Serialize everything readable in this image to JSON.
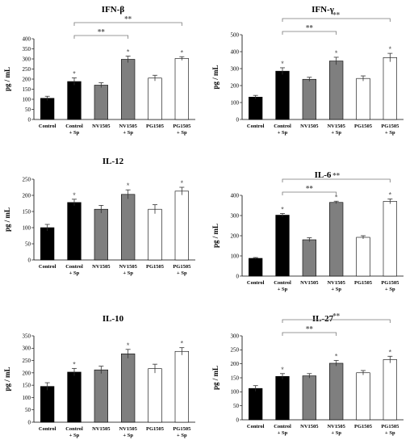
{
  "colors": {
    "black": "#000000",
    "gray": "#7f7f7f",
    "white": "#ffffff",
    "axis": "#000000",
    "err": "#333333",
    "bracket": "#777777"
  },
  "chart_data": [
    {
      "type": "bar",
      "title": "IFN-β",
      "ylabel": "pg / mL",
      "ylim": [
        0,
        400
      ],
      "yticks": [
        0,
        50,
        100,
        150,
        200,
        250,
        300,
        350,
        400
      ],
      "categories": [
        [
          "Control"
        ],
        [
          "Control",
          "+ Sp"
        ],
        [
          "NV1505"
        ],
        [
          "NV1505",
          "+ Sp"
        ],
        [
          "PG1505"
        ],
        [
          "PG1505",
          "+ Sp"
        ]
      ],
      "values": [
        105,
        188,
        170,
        298,
        205,
        302
      ],
      "errors": [
        10,
        18,
        12,
        16,
        14,
        9
      ],
      "bar_colors": [
        "black",
        "black",
        "gray",
        "gray",
        "white",
        "white"
      ],
      "stars": [
        false,
        true,
        false,
        true,
        false,
        true
      ],
      "star_label": "*",
      "brackets": [
        {
          "from": 1,
          "to": 3,
          "label": "**"
        },
        {
          "from": 1,
          "to": 5,
          "label": "**"
        }
      ]
    },
    {
      "type": "bar",
      "title": "IFN-γ",
      "ylabel": "pg / mL",
      "ylim": [
        0,
        500
      ],
      "yticks": [
        0,
        100,
        200,
        300,
        400,
        500
      ],
      "categories": [
        [
          "Control"
        ],
        [
          "Control",
          "+ Sp"
        ],
        [
          "NV1505"
        ],
        [
          "NV1505",
          "+ Sp"
        ],
        [
          "PG1505"
        ],
        [
          "PG1505",
          "+ Sp"
        ]
      ],
      "values": [
        132,
        285,
        237,
        345,
        242,
        365
      ],
      "errors": [
        10,
        20,
        12,
        22,
        15,
        25
      ],
      "bar_colors": [
        "black",
        "black",
        "gray",
        "gray",
        "white",
        "white"
      ],
      "stars": [
        false,
        true,
        false,
        true,
        false,
        true
      ],
      "star_label": "*",
      "brackets": [
        {
          "from": 1,
          "to": 3,
          "label": "**"
        },
        {
          "from": 1,
          "to": 5,
          "label": "**"
        }
      ]
    },
    {
      "type": "bar",
      "title": "IL-12",
      "ylabel": "pg / mL",
      "ylim": [
        0,
        250
      ],
      "yticks": [
        0,
        50,
        100,
        150,
        200,
        250
      ],
      "categories": [
        [
          "Control"
        ],
        [
          "Control",
          "+ Sp"
        ],
        [
          "NV1505"
        ],
        [
          "NV1505",
          "+ Sp"
        ],
        [
          "PG1505"
        ],
        [
          "PG1505",
          "+ Sp"
        ]
      ],
      "values": [
        100,
        178,
        157,
        203,
        157,
        213
      ],
      "errors": [
        10,
        10,
        12,
        14,
        14,
        12
      ],
      "bar_colors": [
        "black",
        "black",
        "gray",
        "gray",
        "white",
        "white"
      ],
      "stars": [
        false,
        true,
        false,
        true,
        false,
        true
      ],
      "star_label": "*",
      "brackets": []
    },
    {
      "type": "bar",
      "title": "IL-6",
      "ylabel": "pg / mL",
      "ylim": [
        0,
        400
      ],
      "yticks": [
        0,
        100,
        200,
        300,
        400
      ],
      "categories": [
        [
          "Control"
        ],
        [
          "Control",
          "+ Sp"
        ],
        [
          "NV1505"
        ],
        [
          "NV1505",
          "+ Sp"
        ],
        [
          "PG1505"
        ],
        [
          "PG1505",
          "+ Sp"
        ]
      ],
      "values": [
        88,
        302,
        180,
        365,
        192,
        370
      ],
      "errors": [
        4,
        8,
        10,
        6,
        8,
        12
      ],
      "bar_colors": [
        "black",
        "black",
        "gray",
        "gray",
        "white",
        "white"
      ],
      "stars": [
        false,
        true,
        false,
        true,
        false,
        true
      ],
      "star_label": "*",
      "brackets": [
        {
          "from": 1,
          "to": 3,
          "label": "**"
        },
        {
          "from": 1,
          "to": 5,
          "label": "**"
        }
      ]
    },
    {
      "type": "bar",
      "title": "IL-10",
      "ylabel": "pg / mL",
      "ylim": [
        0,
        350
      ],
      "yticks": [
        0,
        50,
        100,
        150,
        200,
        250,
        300,
        350
      ],
      "categories": [
        [
          "Control"
        ],
        [
          "Control",
          "+ Sp"
        ],
        [
          "NV1505"
        ],
        [
          "NV1505",
          "+ Sp"
        ],
        [
          "PG1505"
        ],
        [
          "PG1505",
          "+ Sp"
        ]
      ],
      "values": [
        145,
        203,
        212,
        277,
        217,
        287
      ],
      "errors": [
        15,
        15,
        15,
        18,
        18,
        15
      ],
      "bar_colors": [
        "black",
        "black",
        "gray",
        "gray",
        "white",
        "white"
      ],
      "stars": [
        false,
        true,
        false,
        true,
        false,
        true
      ],
      "star_label": "*",
      "brackets": []
    },
    {
      "type": "bar",
      "title": "IL-27",
      "ylabel": "pg / mL",
      "ylim": [
        0,
        300
      ],
      "yticks": [
        0,
        50,
        100,
        150,
        200,
        250,
        300
      ],
      "categories": [
        [
          "Control"
        ],
        [
          "Control",
          "+ Sp"
        ],
        [
          "NV1505"
        ],
        [
          "NV1505",
          "+ Sp"
        ],
        [
          "PG1505"
        ],
        [
          "PG1505",
          "+ Sp"
        ]
      ],
      "values": [
        112,
        155,
        157,
        202,
        168,
        215
      ],
      "errors": [
        10,
        10,
        8,
        10,
        8,
        12
      ],
      "bar_colors": [
        "black",
        "black",
        "gray",
        "gray",
        "white",
        "white"
      ],
      "stars": [
        false,
        true,
        false,
        true,
        false,
        true
      ],
      "star_label": "*",
      "brackets": [
        {
          "from": 1,
          "to": 3,
          "label": "**"
        },
        {
          "from": 1,
          "to": 5,
          "label": "**"
        }
      ]
    }
  ]
}
